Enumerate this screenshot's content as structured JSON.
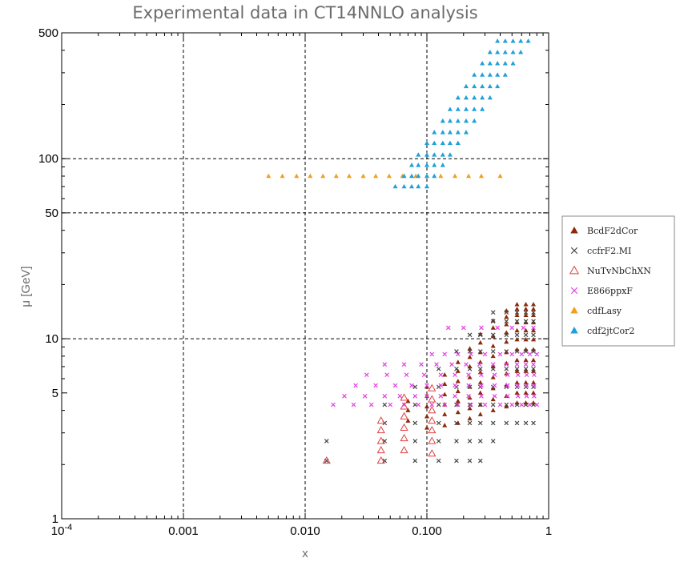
{
  "chart_data": {
    "type": "scatter",
    "title": "Experimental data in CT14NNLO analysis",
    "xlabel": "x",
    "ylabel": "μ [GeV]",
    "xscale": "log",
    "yscale": "log",
    "xlim": [
      0.0001,
      1
    ],
    "ylim": [
      1,
      500
    ],
    "x_ticks": [
      {
        "value": 0.0001,
        "label": "10",
        "sup": "-4"
      },
      {
        "value": 0.001,
        "label": "0.001"
      },
      {
        "value": 0.01,
        "label": "0.010"
      },
      {
        "value": 0.1,
        "label": "0.100"
      },
      {
        "value": 1,
        "label": "1"
      }
    ],
    "y_ticks": [
      {
        "value": 1,
        "label": "1"
      },
      {
        "value": 5,
        "label": "5"
      },
      {
        "value": 10,
        "label": "10"
      },
      {
        "value": 50,
        "label": "50"
      },
      {
        "value": 100,
        "label": "100"
      },
      {
        "value": 500,
        "label": "500"
      }
    ],
    "grid_x": [
      0.001,
      0.01,
      0.1
    ],
    "grid_y": [
      10,
      50,
      100
    ],
    "grid": "dashed",
    "legend_position": "right",
    "series": [
      {
        "name": "BcdF2dCor",
        "marker": "filled-triangle",
        "color": "#8b2a0a",
        "x": [
          0.07,
          0.07,
          0.07,
          0.1,
          0.1,
          0.1,
          0.1,
          0.1,
          0.14,
          0.14,
          0.14,
          0.14,
          0.14,
          0.14,
          0.18,
          0.18,
          0.18,
          0.18,
          0.18,
          0.18,
          0.18,
          0.225,
          0.225,
          0.225,
          0.225,
          0.225,
          0.225,
          0.225,
          0.225,
          0.275,
          0.275,
          0.275,
          0.275,
          0.275,
          0.275,
          0.275,
          0.275,
          0.275,
          0.35,
          0.35,
          0.35,
          0.35,
          0.35,
          0.35,
          0.35,
          0.35,
          0.35,
          0.35,
          0.45,
          0.45,
          0.45,
          0.45,
          0.45,
          0.45,
          0.45,
          0.45,
          0.45,
          0.45,
          0.45,
          0.55,
          0.55,
          0.55,
          0.55,
          0.55,
          0.55,
          0.55,
          0.55,
          0.55,
          0.55,
          0.55,
          0.55,
          0.65,
          0.65,
          0.65,
          0.65,
          0.65,
          0.65,
          0.65,
          0.65,
          0.65,
          0.65,
          0.65,
          0.65,
          0.75,
          0.75,
          0.75,
          0.75,
          0.75,
          0.75,
          0.75,
          0.75,
          0.75,
          0.75,
          0.75,
          0.75
        ],
        "y": [
          3.5,
          4,
          4.5,
          3.2,
          3.7,
          4.2,
          4.8,
          5.4,
          3.3,
          3.8,
          4.3,
          4.9,
          5.6,
          6.3,
          3.4,
          3.9,
          4.5,
          5.1,
          5.8,
          6.6,
          7.4,
          3.6,
          4.1,
          4.7,
          5.4,
          6.1,
          7,
          7.9,
          8.8,
          3.8,
          4.3,
          5,
          5.7,
          6.5,
          7.4,
          8.4,
          9.5,
          10.6,
          4,
          4.6,
          5.3,
          6.1,
          7,
          8,
          9.1,
          10.3,
          11.5,
          12.6,
          4.2,
          4.8,
          5.5,
          6.4,
          7.3,
          8.4,
          9.6,
          10.8,
          12,
          13.2,
          14.3,
          4.4,
          5,
          5.7,
          6.6,
          7.6,
          8.7,
          9.9,
          11.1,
          12.3,
          13.5,
          14.6,
          15.5,
          4.4,
          5,
          5.7,
          6.6,
          7.6,
          8.7,
          9.9,
          11.1,
          12.3,
          13.5,
          14.6,
          15.5,
          4.4,
          5,
          5.7,
          6.6,
          7.6,
          8.7,
          9.9,
          11.1,
          12.3,
          13.5,
          14.6,
          15.5
        ]
      },
      {
        "name": "ccfrF2.MI",
        "marker": "cross",
        "color": "#444444",
        "x": [
          0.015,
          0.015,
          0.045,
          0.045,
          0.045,
          0.045,
          0.08,
          0.08,
          0.08,
          0.08,
          0.08,
          0.125,
          0.125,
          0.125,
          0.125,
          0.125,
          0.125,
          0.175,
          0.175,
          0.175,
          0.175,
          0.175,
          0.175,
          0.175,
          0.225,
          0.225,
          0.225,
          0.225,
          0.225,
          0.225,
          0.225,
          0.225,
          0.275,
          0.275,
          0.275,
          0.275,
          0.275,
          0.275,
          0.275,
          0.275,
          0.35,
          0.35,
          0.35,
          0.35,
          0.35,
          0.35,
          0.35,
          0.35,
          0.35,
          0.45,
          0.45,
          0.45,
          0.45,
          0.45,
          0.45,
          0.45,
          0.45,
          0.55,
          0.55,
          0.55,
          0.55,
          0.55,
          0.55,
          0.55,
          0.55,
          0.65,
          0.65,
          0.65,
          0.65,
          0.65,
          0.65,
          0.65,
          0.65,
          0.75,
          0.75,
          0.75,
          0.75,
          0.75,
          0.75,
          0.75,
          0.75
        ],
        "y": [
          2.1,
          2.7,
          2.1,
          2.7,
          3.4,
          4.3,
          2.1,
          2.7,
          3.4,
          4.3,
          5.4,
          2.1,
          2.7,
          3.4,
          4.3,
          5.4,
          6.8,
          2.1,
          2.7,
          3.4,
          4.3,
          5.4,
          6.8,
          8.5,
          2.1,
          2.7,
          3.4,
          4.3,
          5.4,
          6.8,
          8.5,
          10.5,
          2.1,
          2.7,
          3.4,
          4.3,
          5.4,
          6.8,
          8.5,
          10.5,
          2.7,
          3.4,
          4.3,
          5.4,
          6.8,
          8.5,
          10.5,
          12.5,
          14,
          3.4,
          4.3,
          5.4,
          6.8,
          8.5,
          10.5,
          12.5,
          14,
          3.4,
          4.3,
          5.4,
          6.8,
          8.5,
          10.5,
          12.5,
          14,
          3.4,
          4.3,
          5.4,
          6.8,
          8.5,
          10.5,
          12.5,
          14,
          3.4,
          4.3,
          5.4,
          6.8,
          8.5,
          10.5,
          12.5,
          14
        ]
      },
      {
        "name": "NuTvNbChXN",
        "marker": "open-triangle",
        "color": "#e04040",
        "x": [
          0.015,
          0.042,
          0.042,
          0.042,
          0.042,
          0.042,
          0.065,
          0.065,
          0.065,
          0.065,
          0.065,
          0.065,
          0.11,
          0.11,
          0.11,
          0.11,
          0.11,
          0.11,
          0.11
        ],
        "y": [
          2.1,
          2.1,
          2.4,
          2.7,
          3.1,
          3.5,
          2.4,
          2.8,
          3.2,
          3.7,
          4.2,
          4.7,
          2.3,
          2.7,
          3.1,
          3.5,
          4,
          4.6,
          5.3
        ]
      },
      {
        "name": "E866ppxF",
        "marker": "cross",
        "color": "#e040e0",
        "x": [
          0.017,
          0.025,
          0.035,
          0.05,
          0.065,
          0.085,
          0.11,
          0.14,
          0.18,
          0.23,
          0.3,
          0.4,
          0.5,
          0.6,
          0.7,
          0.8,
          0.021,
          0.031,
          0.045,
          0.06,
          0.08,
          0.1,
          0.13,
          0.17,
          0.22,
          0.28,
          0.36,
          0.46,
          0.56,
          0.66,
          0.76,
          0.026,
          0.038,
          0.055,
          0.075,
          0.1,
          0.13,
          0.17,
          0.22,
          0.28,
          0.36,
          0.46,
          0.56,
          0.66,
          0.76,
          0.032,
          0.047,
          0.068,
          0.095,
          0.13,
          0.17,
          0.22,
          0.28,
          0.36,
          0.46,
          0.56,
          0.66,
          0.76,
          0.045,
          0.065,
          0.09,
          0.12,
          0.16,
          0.21,
          0.27,
          0.35,
          0.45,
          0.55,
          0.65,
          0.75,
          0.11,
          0.14,
          0.18,
          0.23,
          0.3,
          0.4,
          0.5,
          0.6,
          0.7,
          0.8,
          0.15,
          0.2,
          0.28,
          0.38,
          0.5,
          0.62,
          0.75
        ],
        "y": [
          4.3,
          4.3,
          4.3,
          4.3,
          4.3,
          4.3,
          4.3,
          4.3,
          4.3,
          4.3,
          4.3,
          4.3,
          4.3,
          4.3,
          4.3,
          4.3,
          4.8,
          4.8,
          4.8,
          4.8,
          4.8,
          4.8,
          4.8,
          4.8,
          4.8,
          4.8,
          4.8,
          4.8,
          4.8,
          4.8,
          4.8,
          5.5,
          5.5,
          5.5,
          5.5,
          5.5,
          5.5,
          5.5,
          5.5,
          5.5,
          5.5,
          5.5,
          5.5,
          5.5,
          5.5,
          6.3,
          6.3,
          6.3,
          6.3,
          6.3,
          6.3,
          6.3,
          6.3,
          6.3,
          6.3,
          6.3,
          6.3,
          6.3,
          7.2,
          7.2,
          7.2,
          7.2,
          7.2,
          7.2,
          7.2,
          7.2,
          7.2,
          7.2,
          7.2,
          7.2,
          8.2,
          8.2,
          8.2,
          8.2,
          8.2,
          8.2,
          8.2,
          8.2,
          8.2,
          8.2,
          11.5,
          11.5,
          11.5,
          11.5,
          11.5,
          11.5,
          11.5
        ]
      },
      {
        "name": "cdfLasy",
        "marker": "filled-triangle",
        "color": "#f0a020",
        "x": [
          0.005,
          0.0065,
          0.0085,
          0.011,
          0.014,
          0.018,
          0.023,
          0.03,
          0.038,
          0.049,
          0.063,
          0.081,
          0.1,
          0.13,
          0.17,
          0.22,
          0.28,
          0.4
        ],
        "y": [
          80,
          80,
          80,
          80,
          80,
          80,
          80,
          80,
          80,
          80,
          80,
          80,
          80,
          80,
          80,
          80,
          80,
          80
        ]
      },
      {
        "name": "cdf2jtCor2",
        "marker": "filled-triangle",
        "color": "#20a0d8",
        "x": [
          0.055,
          0.065,
          0.075,
          0.085,
          0.1,
          0.065,
          0.075,
          0.085,
          0.1,
          0.115,
          0.075,
          0.085,
          0.1,
          0.115,
          0.135,
          0.085,
          0.1,
          0.115,
          0.135,
          0.155,
          0.1,
          0.115,
          0.135,
          0.155,
          0.18,
          0.115,
          0.135,
          0.155,
          0.18,
          0.21,
          0.135,
          0.155,
          0.18,
          0.21,
          0.245,
          0.155,
          0.18,
          0.21,
          0.245,
          0.285,
          0.18,
          0.21,
          0.245,
          0.285,
          0.33,
          0.21,
          0.245,
          0.285,
          0.33,
          0.38,
          0.245,
          0.285,
          0.33,
          0.38,
          0.44,
          0.285,
          0.33,
          0.38,
          0.44,
          0.51,
          0.33,
          0.38,
          0.44,
          0.51,
          0.59,
          0.38,
          0.44,
          0.51,
          0.59,
          0.68
        ],
        "y": [
          70,
          70,
          70,
          70,
          70,
          80,
          80,
          80,
          80,
          80,
          92,
          92,
          92,
          92,
          92,
          105,
          105,
          105,
          105,
          105,
          122,
          122,
          122,
          122,
          122,
          140,
          140,
          140,
          140,
          140,
          162,
          162,
          162,
          162,
          162,
          188,
          188,
          188,
          188,
          188,
          218,
          218,
          218,
          218,
          218,
          252,
          252,
          252,
          252,
          252,
          292,
          292,
          292,
          292,
          292,
          338,
          338,
          338,
          338,
          338,
          390,
          390,
          390,
          390,
          390,
          450,
          450,
          450,
          450,
          450
        ]
      }
    ]
  }
}
